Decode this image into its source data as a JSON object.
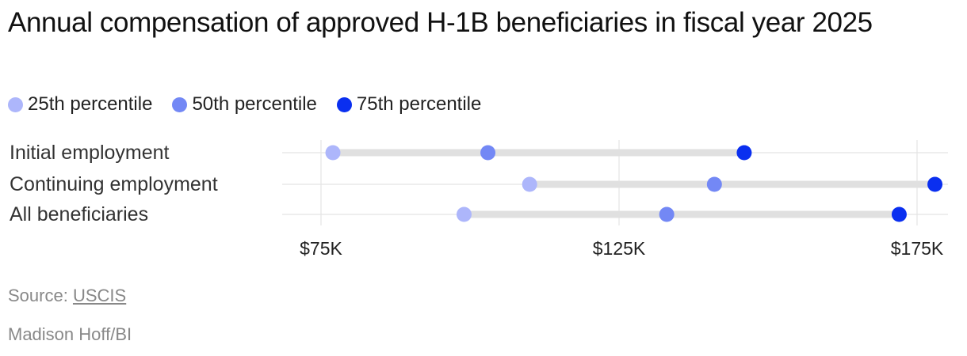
{
  "title": "Annual compensation of approved H-1B beneficiaries in fiscal year 2025",
  "source_label": "Source:",
  "source_name": "USCIS",
  "credit": "Madison Hoff/BI",
  "colors": {
    "p25": "#adb6fb",
    "p50": "#7388f5",
    "p75": "#0a2ff0",
    "track": "#e0e0e0",
    "grid": "#e4e4e4"
  },
  "chart_data": {
    "type": "dot-range",
    "title": "Annual compensation of approved H-1B beneficiaries in fiscal year 2025",
    "series": [
      {
        "name": "25th percentile",
        "key": "p25"
      },
      {
        "name": "50th percentile",
        "key": "p50"
      },
      {
        "name": "75th percentile",
        "key": "p75"
      }
    ],
    "categories": [
      "Initial employment",
      "Continuing employment",
      "All beneficiaries"
    ],
    "rows": [
      {
        "label": "Initial employment",
        "p25": 77000,
        "p50": 103000,
        "p75": 146000
      },
      {
        "label": "Continuing employment",
        "p25": 110000,
        "p50": 141000,
        "p75": 178000
      },
      {
        "label": "All beneficiaries",
        "p25": 99000,
        "p50": 133000,
        "p75": 172000
      }
    ],
    "xlim": [
      68000,
      180000
    ],
    "xticks": [
      75000,
      125000,
      175000
    ],
    "xtick_labels": [
      "$75K",
      "$125K",
      "$175K"
    ],
    "grid": true
  }
}
